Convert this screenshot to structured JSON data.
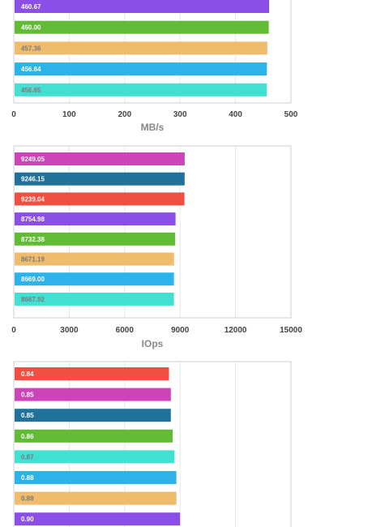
{
  "colors": {
    "purple": "#8b4fe8",
    "green": "#62bb35",
    "tan": "#efbb6d",
    "blue": "#2db3ea",
    "teal": "#41e0d2",
    "magenta": "#cd43b8",
    "darkblue": "#20729b",
    "red": "#f05041",
    "label_light": "#ffffff",
    "label_dark": "#7a7a7a"
  },
  "chart_data": [
    {
      "type": "bar",
      "orientation": "horizontal",
      "xlabel": "MB/s",
      "xlim": [
        0,
        500
      ],
      "xticks": [
        0,
        100,
        200,
        300,
        400,
        500
      ],
      "grid": true,
      "clipped_top": true,
      "bars": [
        {
          "value": 460.67,
          "label": "460.67",
          "color": "purple"
        },
        {
          "value": 460.0,
          "label": "460.00",
          "color": "green"
        },
        {
          "value": 457.36,
          "label": "457.36",
          "color": "tan"
        },
        {
          "value": 456.64,
          "label": "456.64",
          "color": "blue"
        },
        {
          "value": 456.65,
          "label": "456.65",
          "color": "teal"
        }
      ]
    },
    {
      "type": "bar",
      "orientation": "horizontal",
      "xlabel": "IOps",
      "xlim": [
        0,
        15000
      ],
      "xticks": [
        0,
        3000,
        6000,
        9000,
        12000,
        15000
      ],
      "grid": true,
      "bars": [
        {
          "value": 9249.05,
          "label": "9249.05",
          "color": "magenta"
        },
        {
          "value": 9246.15,
          "label": "9246.15",
          "color": "darkblue"
        },
        {
          "value": 9239.04,
          "label": "9239.04",
          "color": "red"
        },
        {
          "value": 8754.98,
          "label": "8754.98",
          "color": "purple"
        },
        {
          "value": 8732.38,
          "label": "8732.38",
          "color": "green"
        },
        {
          "value": 8671.19,
          "label": "8671.19",
          "color": "tan"
        },
        {
          "value": 8669.0,
          "label": "8669.00",
          "color": "blue"
        },
        {
          "value": 8667.92,
          "label": "8667.92",
          "color": "teal"
        }
      ]
    },
    {
      "type": "bar",
      "orientation": "horizontal",
      "xlim": [
        0,
        1.5
      ],
      "grid": true,
      "clipped_bottom": true,
      "bars": [
        {
          "value": 0.84,
          "label": "0.84",
          "color": "red"
        },
        {
          "value": 0.85,
          "label": "0.85",
          "color": "magenta"
        },
        {
          "value": 0.85,
          "label": "0.85",
          "color": "darkblue"
        },
        {
          "value": 0.86,
          "label": "0.86",
          "color": "green"
        },
        {
          "value": 0.87,
          "label": "0.87",
          "color": "teal"
        },
        {
          "value": 0.88,
          "label": "0.88",
          "color": "blue"
        },
        {
          "value": 0.88,
          "label": "0.88",
          "color": "tan"
        },
        {
          "value": 0.9,
          "label": "0.90",
          "color": "purple"
        }
      ]
    }
  ]
}
